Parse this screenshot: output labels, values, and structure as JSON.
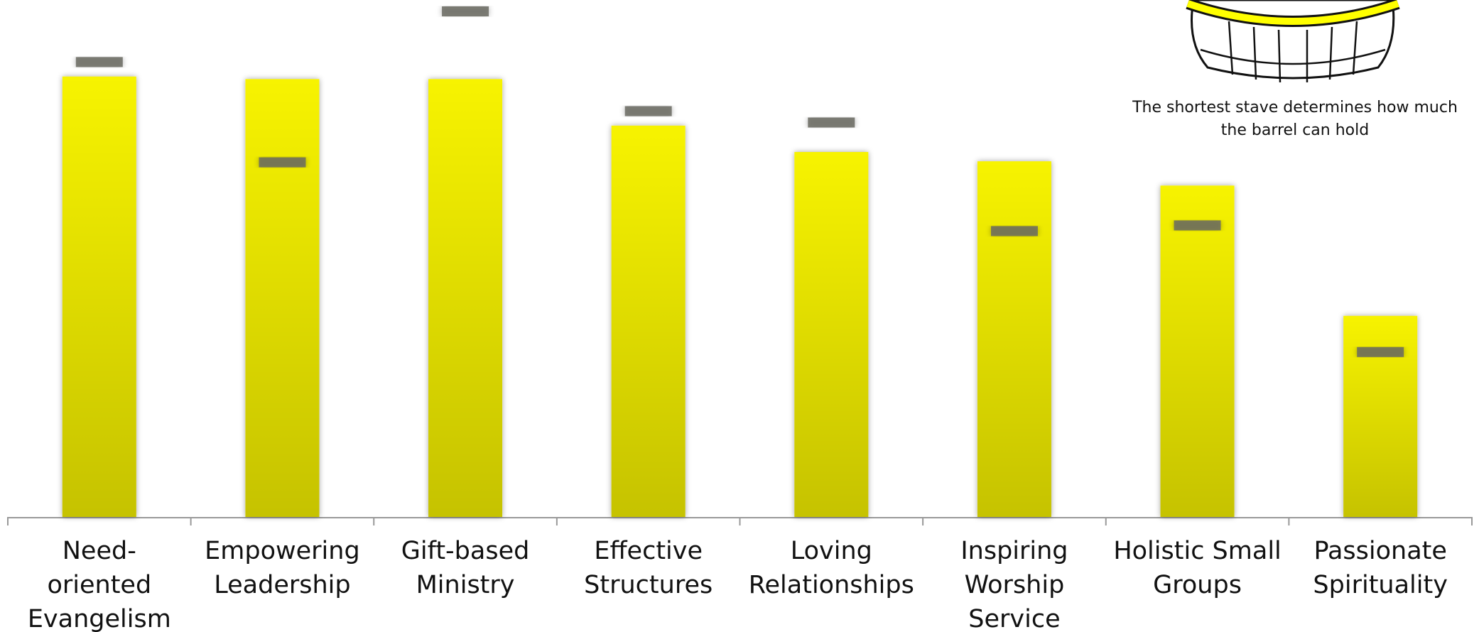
{
  "chart_data": {
    "type": "bar",
    "annotation": "The shortest stave determines how much the barrel can hold",
    "categories": [
      "Need-oriented Evangelism",
      "Empowering Leadership",
      "Gift-based Ministry",
      "Effective Structures",
      "Loving Relationships",
      "Inspiring Worship Service",
      "Holistic Small Groups",
      "Passionate Spirituality"
    ],
    "series": [
      {
        "color": "#f7f300",
        "style": "bar",
        "values": [
          85.2,
          84.7,
          84.7,
          75.7,
          70.6,
          68.8,
          64.1,
          38.9
        ]
      },
      {
        "color": "#6a6a60",
        "style": "dash",
        "values": [
          88.0,
          68.6,
          97.8,
          78.5,
          76.3,
          55.3,
          56.4,
          31.9
        ]
      }
    ],
    "ylim": [
      0,
      100
    ]
  }
}
